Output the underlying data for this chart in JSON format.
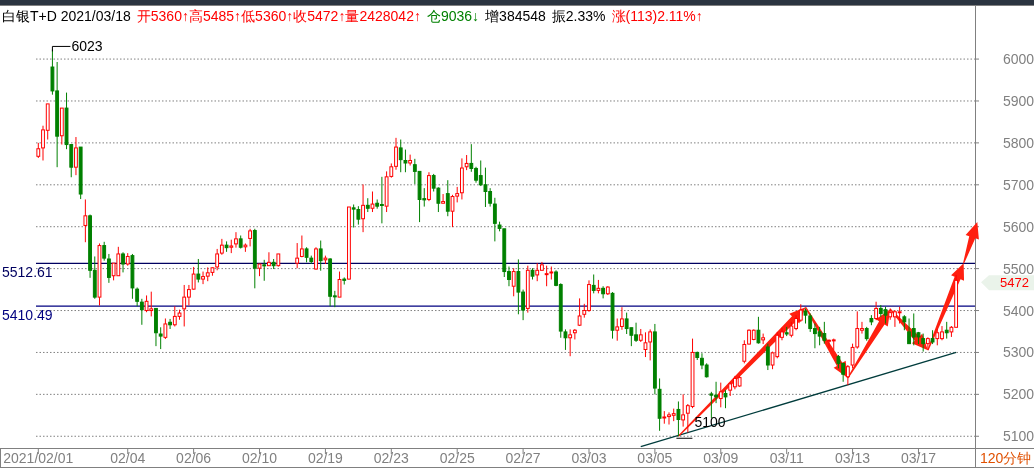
{
  "chart_data": {
    "type": "candlestick",
    "title": "白银T+D 2021/03/18",
    "annotations": [
      "开5360↑",
      "高5485↑",
      "低5360↑",
      "收5472↑",
      "量2428042↑",
      "仓9036↓",
      "增384548",
      "振2.33%",
      "涨(113)2.11%↑",
      "120分钟",
      "6023",
      "5100",
      "5472"
    ],
    "categories": [
      "2021/02/01",
      null,
      null,
      null,
      null,
      null,
      null,
      null,
      null,
      null,
      null,
      null,
      null,
      null,
      null,
      null,
      null,
      null,
      null,
      "02/04",
      null,
      null,
      null,
      null,
      null,
      null,
      null,
      null,
      null,
      null,
      null,
      null,
      null,
      "02/06",
      null,
      null,
      null,
      null,
      null,
      null,
      null,
      null,
      null,
      null,
      null,
      null,
      null,
      "02/10",
      null,
      null,
      null,
      null,
      null,
      null,
      null,
      null,
      null,
      null,
      null,
      null,
      null,
      "02/19",
      null,
      null,
      null,
      null,
      null,
      null,
      null,
      null,
      null,
      null,
      null,
      null,
      null,
      "02/23",
      null,
      null,
      null,
      null,
      null,
      null,
      null,
      null,
      null,
      null,
      null,
      null,
      null,
      "02/25",
      null,
      null,
      null,
      null,
      null,
      null,
      null,
      null,
      null,
      null,
      null,
      null,
      null,
      "02/27",
      null,
      null,
      null,
      null,
      null,
      null,
      null,
      null,
      null,
      null,
      null,
      null,
      null,
      "03/03",
      null,
      null,
      null,
      null,
      null,
      null,
      null,
      null,
      null,
      null,
      null,
      null,
      null,
      "03/05",
      null,
      null,
      null,
      null,
      null,
      null,
      null,
      null,
      null,
      null,
      null,
      null,
      null,
      "03/09",
      null,
      null,
      null,
      null,
      null,
      null,
      null,
      null,
      null,
      null,
      null,
      null,
      null,
      "03/11",
      null,
      null,
      null,
      null,
      null,
      null,
      null,
      null,
      null,
      null,
      null,
      null,
      null,
      "03/13",
      null,
      null,
      null,
      null,
      null,
      null,
      null,
      null,
      null,
      null,
      null,
      null,
      null,
      "03/17",
      null,
      null,
      null,
      null,
      null,
      null,
      null,
      null
    ],
    "ohlc": [
      [
        5768,
        5800,
        5764,
        5786
      ],
      [
        5788,
        5841,
        5758,
        5831
      ],
      [
        5830,
        5893,
        5808,
        5893
      ],
      [
        5981,
        6023,
        5915,
        5924
      ],
      [
        5924,
        5993,
        5742,
        5816
      ],
      [
        5817,
        5883,
        5796,
        5883
      ],
      [
        5883,
        5920,
        5785,
        5796
      ],
      [
        5796,
        5796,
        5718,
        5742
      ],
      [
        5742,
        5814,
        5723,
        5788
      ],
      [
        5790,
        5790,
        5666,
        5678
      ],
      [
        5603,
        5665,
        5563,
        5626
      ],
      [
        5626,
        5629,
        5478,
        5496
      ],
      [
        5496,
        5529,
        5428,
        5432
      ],
      [
        5432,
        5560,
        5412,
        5555
      ],
      [
        5555,
        5564,
        5519,
        5525
      ],
      [
        5523,
        5535,
        5466,
        5479
      ],
      [
        5483,
        5513,
        5472,
        5513
      ],
      [
        5483,
        5552,
        5483,
        5535
      ],
      [
        5535,
        5539,
        5491,
        5511
      ],
      [
        5511,
        5537,
        5507,
        5529
      ],
      [
        5531,
        5535,
        5428,
        5454
      ],
      [
        5451,
        5455,
        5410,
        5422
      ],
      [
        5420,
        5428,
        5366,
        5402
      ],
      [
        5400,
        5436,
        5396,
        5422
      ],
      [
        5400,
        5445,
        5386,
        5404
      ],
      [
        5405,
        5405,
        5315,
        5347
      ],
      [
        5344,
        5360,
        5308,
        5339
      ],
      [
        5336,
        5381,
        5332,
        5368
      ],
      [
        5372,
        5380,
        5356,
        5366
      ],
      [
        5366,
        5410,
        5362,
        5386
      ],
      [
        5386,
        5402,
        5378,
        5394
      ],
      [
        5404,
        5461,
        5362,
        5432
      ],
      [
        5432,
        5461,
        5412,
        5450
      ],
      [
        5451,
        5504,
        5450,
        5487
      ],
      [
        5487,
        5523,
        5467,
        5475
      ],
      [
        5475,
        5493,
        5463,
        5481
      ],
      [
        5482,
        5503,
        5470,
        5490
      ],
      [
        5491,
        5503,
        5483,
        5502
      ],
      [
        5504,
        5547,
        5496,
        5535
      ],
      [
        5537,
        5571,
        5533,
        5556
      ],
      [
        5556,
        5565,
        5540,
        5550
      ],
      [
        5551,
        5569,
        5537,
        5554
      ],
      [
        5559,
        5587,
        5550,
        5571
      ],
      [
        5571,
        5579,
        5548,
        5551
      ],
      [
        5552,
        5560,
        5540,
        5556
      ],
      [
        5572,
        5595,
        5553,
        5590
      ],
      [
        5591,
        5595,
        5453,
        5501
      ],
      [
        5501,
        5511,
        5482,
        5511
      ],
      [
        5509,
        5521,
        5471,
        5507
      ],
      [
        5507,
        5539,
        5507,
        5515
      ],
      [
        5515,
        5523,
        5499,
        5507
      ],
      [
        5507,
        5535,
        5505,
        5535
      ],
      null,
      null,
      null,
      [
        5513,
        5561,
        5501,
        5525
      ],
      [
        5529,
        5579,
        5527,
        5547
      ],
      [
        5547,
        5551,
        5515,
        5527
      ],
      [
        5525,
        5531,
        5511,
        5517
      ],
      [
        5499,
        5551,
        5498,
        5547
      ],
      [
        5547,
        5567,
        5495,
        5519
      ],
      [
        5521,
        5531,
        5511,
        5525
      ],
      [
        5523,
        5525,
        5410,
        5434
      ],
      [
        5435,
        5447,
        5408,
        5433
      ],
      [
        5432,
        5493,
        5432,
        5474
      ],
      [
        5475,
        5479,
        5462,
        5472
      ],
      [
        5475,
        5647,
        5474,
        5647
      ],
      [
        5645,
        5653,
        5598,
        5642
      ],
      [
        5641,
        5649,
        5605,
        5618
      ],
      [
        5619,
        5701,
        5587,
        5651
      ],
      [
        5651,
        5668,
        5635,
        5644
      ],
      [
        5644,
        5684,
        5635,
        5654
      ],
      [
        5656,
        5665,
        5643,
        5649
      ],
      [
        5653,
        5719,
        5608,
        5651
      ],
      [
        5649,
        5732,
        5635,
        5719
      ],
      [
        5720,
        5751,
        5717,
        5743
      ],
      [
        5744,
        5812,
        5736,
        5790
      ],
      [
        5788,
        5808,
        5730,
        5760
      ],
      [
        5758,
        5784,
        5730,
        5752
      ],
      [
        5752,
        5772,
        5746,
        5758
      ],
      [
        5748,
        5762,
        5702,
        5732
      ],
      [
        5732,
        5732,
        5611,
        5665
      ],
      [
        5667,
        5692,
        5648,
        5664
      ],
      [
        5665,
        5730,
        5661,
        5722
      ],
      [
        5722,
        5726,
        5684,
        5692
      ],
      [
        5692,
        5694,
        5635,
        5656
      ],
      [
        5656,
        5678,
        5656,
        5660
      ],
      [
        5679,
        5711,
        5625,
        5637
      ],
      [
        5637,
        5676,
        5599,
        5672
      ],
      [
        5673,
        5695,
        5658,
        5679
      ],
      [
        5681,
        5763,
        5665,
        5740
      ],
      [
        5743,
        5771,
        5735,
        5751
      ],
      [
        5751,
        5797,
        5731,
        5739
      ],
      [
        5739,
        5743,
        5705,
        5711
      ],
      [
        5722,
        5758,
        5697,
        5700
      ],
      [
        5700,
        5741,
        5647,
        5684
      ],
      [
        5684,
        5692,
        5648,
        5656
      ],
      [
        5654,
        5669,
        5565,
        5608
      ],
      [
        5604,
        5612,
        5589,
        5596
      ],
      [
        5595,
        5595,
        5480,
        5493
      ],
      [
        5493,
        5505,
        5458,
        5474
      ],
      [
        5458,
        5501,
        5434,
        5493
      ],
      [
        5493,
        5522,
        5391,
        5444
      ],
      [
        5444,
        5450,
        5377,
        5401
      ],
      [
        5405,
        5507,
        5395,
        5496
      ],
      [
        5496,
        5501,
        5474,
        5482
      ],
      [
        5485,
        5513,
        5470,
        5496
      ],
      [
        5496,
        5516,
        5496,
        5509
      ],
      [
        5486,
        5507,
        5458,
        5488
      ],
      [
        5490,
        5505,
        5474,
        5492
      ],
      [
        5492,
        5496,
        5458,
        5460
      ],
      [
        5462,
        5465,
        5335,
        5351
      ],
      [
        5349,
        5355,
        5306,
        5335
      ],
      [
        5335,
        5355,
        5291,
        5342
      ],
      [
        5347,
        5356,
        5331,
        5353
      ],
      [
        5365,
        5429,
        5363,
        5387
      ],
      [
        5391,
        5416,
        5383,
        5400
      ],
      [
        5400,
        5472,
        5397,
        5462
      ],
      [
        5460,
        5486,
        5441,
        5448
      ],
      [
        5448,
        5473,
        5441,
        5453
      ],
      [
        5453,
        5458,
        5429,
        5440
      ],
      [
        5440,
        5458,
        5437,
        5456
      ],
      [
        5441,
        5444,
        5333,
        5353
      ],
      [
        5353,
        5381,
        5328,
        5361
      ],
      [
        5362,
        5408,
        5354,
        5380
      ],
      [
        5380,
        5395,
        5344,
        5357
      ],
      [
        5359,
        5359,
        5315,
        5341
      ],
      [
        5342,
        5371,
        5325,
        5329
      ],
      [
        5329,
        5356,
        5325,
        5342
      ],
      [
        5307,
        5348,
        5289,
        5323
      ],
      [
        5325,
        5355,
        5281,
        5349
      ],
      [
        5349,
        5368,
        5200,
        5215
      ],
      [
        5212,
        5238,
        5113,
        5143
      ],
      [
        5145,
        5160,
        5130,
        5146
      ],
      [
        5147,
        5157,
        5128,
        5151
      ],
      [
        5150,
        5166,
        5136,
        5154
      ],
      [
        5164,
        5183,
        5100,
        5140
      ],
      [
        5139,
        5200,
        5123,
        5151
      ],
      [
        5155,
        5177,
        5109,
        5173
      ],
      [
        5171,
        5333,
        5167,
        5300
      ],
      [
        5300,
        5302,
        5282,
        5288
      ],
      [
        5286,
        5298,
        5260,
        5270
      ],
      [
        5270,
        5274,
        5240,
        5242
      ],
      [
        5201,
        5206,
        5143,
        5198
      ],
      [
        5198,
        5230,
        5179,
        5194
      ],
      [
        5190,
        5228,
        5169,
        5206
      ],
      [
        5202,
        5210,
        5167,
        5194
      ],
      [
        5210,
        5228,
        5196,
        5225
      ],
      [
        5218,
        5244,
        5212,
        5238
      ],
      [
        5220,
        5244,
        5218,
        5240
      ],
      [
        5279,
        5329,
        5274,
        5319
      ],
      [
        5320,
        5355,
        5319,
        5353
      ],
      [
        5331,
        5355,
        5329,
        5353
      ],
      [
        5353,
        5385,
        5321,
        5323
      ],
      [
        5330,
        5345,
        5320,
        5335
      ],
      [
        5313,
        5321,
        5258,
        5270
      ],
      [
        5270,
        5302,
        5260,
        5299
      ],
      [
        5290,
        5349,
        5286,
        5341
      ],
      [
        5336,
        5359,
        5329,
        5349
      ],
      [
        5347,
        5361,
        5339,
        5344
      ],
      [
        5341,
        5373,
        5336,
        5363
      ],
      [
        5357,
        5389,
        5353,
        5381
      ],
      [
        5377,
        5415,
        5373,
        5401
      ],
      [
        5399,
        5405,
        5369,
        5389
      ],
      [
        5387,
        5393,
        5349,
        5357
      ],
      [
        5357,
        5369,
        5310,
        5345
      ],
      [
        5349,
        5361,
        5317,
        5339
      ],
      [
        5345,
        5373,
        5321,
        5329
      ],
      [
        5328,
        5331,
        5310,
        5329
      ],
      [
        5328,
        5333,
        5306,
        5330
      ],
      [
        5290,
        5294,
        5262,
        5274
      ],
      [
        5274,
        5275,
        5230,
        5248
      ],
      [
        5242,
        5270,
        5222,
        5266
      ],
      [
        5270,
        5321,
        5262,
        5312
      ],
      [
        5313,
        5398,
        5309,
        5357
      ],
      [
        5353,
        5373,
        5345,
        5357
      ],
      [
        5357,
        5361,
        5328,
        5333
      ],
      [
        5381,
        5389,
        5365,
        5373
      ],
      [
        5381,
        5421,
        5377,
        5405
      ],
      [
        5405,
        5413,
        5385,
        5393
      ],
      [
        5402,
        5409,
        5369,
        5389
      ],
      [
        5385,
        5405,
        5378,
        5395
      ],
      [
        5385,
        5401,
        5361,
        5397
      ],
      [
        5395,
        5409,
        5369,
        5397
      ],
      [
        5385,
        5389,
        5353,
        5373
      ],
      [
        5349,
        5381,
        5320,
        5321
      ],
      [
        5357,
        5393,
        5317,
        5337
      ],
      [
        5347,
        5349,
        5320,
        5337
      ],
      [
        5333,
        5345,
        5302,
        5321
      ],
      [
        5321,
        5336,
        5306,
        5333
      ],
      [
        5333,
        5353,
        5320,
        5325
      ],
      [
        5333,
        5357,
        5317,
        5347
      ],
      [
        5333,
        5363,
        5329,
        5349
      ],
      [
        5353,
        5373,
        5333,
        5347
      ],
      [
        5349,
        5363,
        5337,
        5360
      ],
      [
        5360,
        5485,
        5360,
        5472
      ]
    ],
    "series": [
      {
        "type": "line",
        "color": "#003c3c",
        "values": [
          null,
          null,
          null,
          null,
          null,
          null,
          null,
          null,
          null,
          null,
          null,
          null,
          null,
          null,
          null,
          null,
          null,
          null,
          null,
          null,
          null,
          null,
          null,
          null,
          null,
          null,
          null,
          null,
          null,
          null,
          null,
          null,
          null,
          null,
          null,
          null,
          null,
          null,
          null,
          null,
          null,
          null,
          null,
          null,
          null,
          null,
          null,
          null,
          null,
          null,
          null,
          null,
          null,
          null,
          null,
          null,
          null,
          null,
          null,
          null,
          null,
          null,
          null,
          null,
          null,
          null,
          null,
          null,
          null,
          null,
          null,
          null,
          null,
          null,
          null,
          null,
          null,
          null,
          null,
          null,
          null,
          null,
          null,
          null,
          null,
          null,
          null,
          null,
          null,
          null,
          null,
          null,
          null,
          null,
          null,
          null,
          null,
          null,
          null,
          null,
          null,
          null,
          null,
          null,
          null,
          null,
          null,
          null,
          null,
          null,
          null,
          null,
          null,
          null,
          null,
          null,
          null,
          null,
          null,
          null,
          null,
          null,
          null,
          null,
          null,
          null,
          null,
          null,
          5075,
          null,
          null,
          null,
          null,
          null,
          null,
          null,
          null,
          null,
          null,
          null,
          null,
          null,
          null,
          null,
          null,
          null,
          null,
          null,
          null,
          null,
          null,
          null,
          null,
          null,
          null,
          null,
          null,
          null,
          null,
          null,
          null,
          null,
          null,
          null,
          null,
          null,
          null,
          null,
          null,
          null,
          null,
          null,
          null,
          null,
          null,
          null,
          null,
          null,
          null,
          null,
          null,
          null,
          null,
          null,
          null,
          null,
          null,
          null,
          null,
          null,
          null,
          null,
          null,
          null,
          null,
          5300
        ]
      }
    ],
    "ref_lines": [
      {
        "axis": "y",
        "value": 5512.61,
        "label": "5512.61",
        "color": "#000060"
      },
      {
        "axis": "y",
        "value": 5410.49,
        "label": "5410.49",
        "color": "#000080"
      }
    ],
    "ylim": [
      5072,
      6129
    ],
    "yticks": [
      5100,
      5200,
      5300,
      5400,
      5500,
      5600,
      5700,
      5800,
      5900,
      6000
    ],
    "grid": "y"
  }
}
